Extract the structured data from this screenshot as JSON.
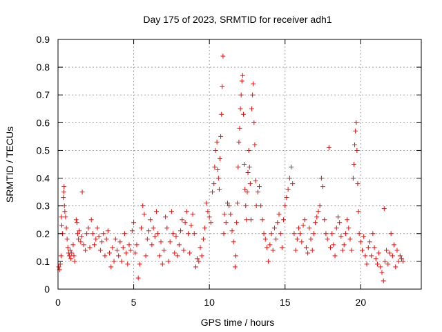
{
  "chart_data": {
    "type": "scatter",
    "title": "Day 175 of 2023, SRMTID for receiver adh1",
    "xlabel": "GPS time / hours",
    "ylabel": "SRMTID / TECUs",
    "xlim": [
      0,
      24
    ],
    "ylim": [
      0,
      0.9
    ],
    "xticks": [
      0,
      5,
      10,
      15,
      20
    ],
    "xtick_labels": [
      "0",
      "5",
      "10",
      "15",
      "20"
    ],
    "yticks": [
      0,
      0.1,
      0.2,
      0.3,
      0.4,
      0.5,
      0.6,
      0.7,
      0.8,
      0.9
    ],
    "ytick_labels": [
      "0",
      "0.1",
      "0.2",
      "0.3",
      "0.4",
      "0.5",
      "0.6",
      "0.7",
      "0.8",
      "0.9"
    ],
    "grid": true,
    "marker": "+",
    "series_color": "#ff0000",
    "series": [
      {
        "name": "SRMTID",
        "points": [
          [
            0.05,
            0.08
          ],
          [
            0.1,
            0.07
          ],
          [
            0.15,
            0.09
          ],
          [
            0.2,
            0.12
          ],
          [
            0.22,
            0.26
          ],
          [
            0.25,
            0.23
          ],
          [
            0.3,
            0.2
          ],
          [
            0.35,
            0.33
          ],
          [
            0.38,
            0.35
          ],
          [
            0.4,
            0.37
          ],
          [
            0.42,
            0.3
          ],
          [
            0.45,
            0.28
          ],
          [
            0.5,
            0.26
          ],
          [
            0.55,
            0.22
          ],
          [
            0.6,
            0.18
          ],
          [
            0.65,
            0.15
          ],
          [
            0.7,
            0.13
          ],
          [
            0.75,
            0.12
          ],
          [
            0.8,
            0.14
          ],
          [
            0.85,
            0.11
          ],
          [
            0.9,
            0.13
          ],
          [
            1.0,
            0.16
          ],
          [
            1.05,
            0.12
          ],
          [
            1.1,
            0.1
          ],
          [
            1.2,
            0.25
          ],
          [
            1.25,
            0.24
          ],
          [
            1.3,
            0.2
          ],
          [
            1.35,
            0.18
          ],
          [
            1.4,
            0.21
          ],
          [
            1.5,
            0.17
          ],
          [
            1.55,
            0.19
          ],
          [
            1.6,
            0.35
          ],
          [
            1.7,
            0.16
          ],
          [
            1.8,
            0.14
          ],
          [
            1.9,
            0.2
          ],
          [
            2.0,
            0.22
          ],
          [
            2.1,
            0.15
          ],
          [
            2.2,
            0.25
          ],
          [
            2.3,
            0.2
          ],
          [
            2.4,
            0.16
          ],
          [
            2.5,
            0.18
          ],
          [
            2.6,
            0.22
          ],
          [
            2.7,
            0.19
          ],
          [
            2.8,
            0.14
          ],
          [
            2.9,
            0.17
          ],
          [
            3.0,
            0.2
          ],
          [
            3.1,
            0.12
          ],
          [
            3.2,
            0.18
          ],
          [
            3.3,
            0.21
          ],
          [
            3.4,
            0.13
          ],
          [
            3.5,
            0.08
          ],
          [
            3.6,
            0.15
          ],
          [
            3.7,
            0.1
          ],
          [
            3.8,
            0.18
          ],
          [
            3.9,
            0.14
          ],
          [
            4.0,
            0.12
          ],
          [
            4.1,
            0.17
          ],
          [
            4.2,
            0.1
          ],
          [
            4.3,
            0.15
          ],
          [
            4.4,
            0.2
          ],
          [
            4.5,
            0.13
          ],
          [
            4.6,
            0.09
          ],
          [
            4.7,
            0.16
          ],
          [
            4.8,
            0.14
          ],
          [
            4.9,
            0.21
          ],
          [
            5.0,
            0.24
          ],
          [
            5.1,
            0.13
          ],
          [
            5.2,
            0.16
          ],
          [
            5.3,
            0.04
          ],
          [
            5.4,
            0.09
          ],
          [
            5.5,
            0.22
          ],
          [
            5.6,
            0.3
          ],
          [
            5.7,
            0.27
          ],
          [
            5.8,
            0.12
          ],
          [
            5.9,
            0.18
          ],
          [
            6.0,
            0.21
          ],
          [
            6.1,
            0.25
          ],
          [
            6.2,
            0.16
          ],
          [
            6.3,
            0.22
          ],
          [
            6.4,
            0.19
          ],
          [
            6.5,
            0.28
          ],
          [
            6.6,
            0.2
          ],
          [
            6.7,
            0.12
          ],
          [
            6.8,
            0.17
          ],
          [
            6.9,
            0.09
          ],
          [
            7.0,
            0.14
          ],
          [
            7.1,
            0.26
          ],
          [
            7.2,
            0.22
          ],
          [
            7.3,
            0.1
          ],
          [
            7.4,
            0.17
          ],
          [
            7.5,
            0.28
          ],
          [
            7.6,
            0.2
          ],
          [
            7.7,
            0.13
          ],
          [
            7.8,
            0.19
          ],
          [
            7.9,
            0.12
          ],
          [
            8.0,
            0.16
          ],
          [
            8.1,
            0.21
          ],
          [
            8.2,
            0.25
          ],
          [
            8.3,
            0.14
          ],
          [
            8.4,
            0.24
          ],
          [
            8.5,
            0.28
          ],
          [
            8.6,
            0.2
          ],
          [
            8.7,
            0.13
          ],
          [
            8.8,
            0.23
          ],
          [
            8.9,
            0.27
          ],
          [
            9.0,
            0.2
          ],
          [
            9.1,
            0.08
          ],
          [
            9.2,
            0.11
          ],
          [
            9.3,
            0.1
          ],
          [
            9.4,
            0.15
          ],
          [
            9.5,
            0.12
          ],
          [
            9.6,
            0.18
          ],
          [
            9.7,
            0.22
          ],
          [
            9.8,
            0.31
          ],
          [
            9.9,
            0.28
          ],
          [
            10.0,
            0.26
          ],
          [
            10.1,
            0.24
          ],
          [
            10.2,
            0.35
          ],
          [
            10.3,
            0.38
          ],
          [
            10.35,
            0.44
          ],
          [
            10.4,
            0.5
          ],
          [
            10.5,
            0.53
          ],
          [
            10.55,
            0.43
          ],
          [
            10.6,
            0.4
          ],
          [
            10.65,
            0.36
          ],
          [
            10.7,
            0.47
          ],
          [
            10.75,
            0.55
          ],
          [
            10.8,
            0.63
          ],
          [
            10.85,
            0.73
          ],
          [
            10.9,
            0.84
          ],
          [
            10.95,
            0.2
          ],
          [
            11.0,
            0.27
          ],
          [
            11.1,
            0.24
          ],
          [
            11.2,
            0.31
          ],
          [
            11.3,
            0.3
          ],
          [
            11.4,
            0.27
          ],
          [
            11.5,
            0.21
          ],
          [
            11.6,
            0.17
          ],
          [
            11.7,
            0.08
          ],
          [
            11.75,
            0.12
          ],
          [
            11.8,
            0.24
          ],
          [
            11.85,
            0.31
          ],
          [
            11.9,
            0.44
          ],
          [
            11.95,
            0.53
          ],
          [
            12.0,
            0.58
          ],
          [
            12.05,
            0.65
          ],
          [
            12.1,
            0.7
          ],
          [
            12.15,
            0.75
          ],
          [
            12.2,
            0.77
          ],
          [
            12.25,
            0.63
          ],
          [
            12.3,
            0.45
          ],
          [
            12.35,
            0.36
          ],
          [
            12.4,
            0.3
          ],
          [
            12.45,
            0.25
          ],
          [
            12.5,
            0.35
          ],
          [
            12.55,
            0.42
          ],
          [
            12.6,
            0.5
          ],
          [
            12.65,
            0.44
          ],
          [
            12.7,
            0.38
          ],
          [
            12.75,
            0.25
          ],
          [
            12.8,
            0.65
          ],
          [
            12.85,
            0.7
          ],
          [
            12.9,
            0.74
          ],
          [
            12.95,
            0.6
          ],
          [
            13.0,
            0.52
          ],
          [
            13.05,
            0.39
          ],
          [
            13.1,
            0.3
          ],
          [
            13.2,
            0.35
          ],
          [
            13.3,
            0.37
          ],
          [
            13.4,
            0.3
          ],
          [
            13.5,
            0.25
          ],
          [
            13.6,
            0.2
          ],
          [
            13.7,
            0.18
          ],
          [
            13.8,
            0.15
          ],
          [
            13.9,
            0.1
          ],
          [
            14.0,
            0.16
          ],
          [
            14.1,
            0.2
          ],
          [
            14.2,
            0.14
          ],
          [
            14.3,
            0.22
          ],
          [
            14.4,
            0.18
          ],
          [
            14.5,
            0.24
          ],
          [
            14.6,
            0.27
          ],
          [
            14.7,
            0.2
          ],
          [
            14.8,
            0.15
          ],
          [
            14.9,
            0.25
          ],
          [
            15.0,
            0.3
          ],
          [
            15.1,
            0.33
          ],
          [
            15.2,
            0.36
          ],
          [
            15.3,
            0.4
          ],
          [
            15.4,
            0.44
          ],
          [
            15.5,
            0.38
          ],
          [
            15.6,
            0.2
          ],
          [
            15.7,
            0.14
          ],
          [
            15.8,
            0.18
          ],
          [
            15.9,
            0.22
          ],
          [
            16.0,
            0.2
          ],
          [
            16.1,
            0.17
          ],
          [
            16.2,
            0.23
          ],
          [
            16.3,
            0.25
          ],
          [
            16.4,
            0.15
          ],
          [
            16.5,
            0.13
          ],
          [
            16.6,
            0.22
          ],
          [
            16.7,
            0.18
          ],
          [
            16.8,
            0.14
          ],
          [
            16.9,
            0.2
          ],
          [
            17.0,
            0.24
          ],
          [
            17.1,
            0.26
          ],
          [
            17.2,
            0.28
          ],
          [
            17.3,
            0.3
          ],
          [
            17.4,
            0.4
          ],
          [
            17.5,
            0.37
          ],
          [
            17.6,
            0.25
          ],
          [
            17.7,
            0.2
          ],
          [
            17.8,
            0.18
          ],
          [
            17.9,
            0.51
          ],
          [
            18.0,
            0.15
          ],
          [
            18.1,
            0.2
          ],
          [
            18.2,
            0.16
          ],
          [
            18.3,
            0.12
          ],
          [
            18.4,
            0.22
          ],
          [
            18.5,
            0.26
          ],
          [
            18.6,
            0.24
          ],
          [
            18.7,
            0.19
          ],
          [
            18.8,
            0.14
          ],
          [
            18.9,
            0.16
          ],
          [
            19.0,
            0.2
          ],
          [
            19.1,
            0.25
          ],
          [
            19.2,
            0.22
          ],
          [
            19.3,
            0.18
          ],
          [
            19.4,
            0.14
          ],
          [
            19.5,
            0.4
          ],
          [
            19.55,
            0.45
          ],
          [
            19.6,
            0.52
          ],
          [
            19.65,
            0.57
          ],
          [
            19.7,
            0.6
          ],
          [
            19.75,
            0.5
          ],
          [
            19.8,
            0.38
          ],
          [
            19.85,
            0.28
          ],
          [
            19.9,
            0.2
          ],
          [
            20.0,
            0.17
          ],
          [
            20.1,
            0.14
          ],
          [
            20.2,
            0.19
          ],
          [
            20.3,
            0.12
          ],
          [
            20.4,
            0.09
          ],
          [
            20.5,
            0.15
          ],
          [
            20.6,
            0.17
          ],
          [
            20.7,
            0.12
          ],
          [
            20.8,
            0.2
          ],
          [
            20.9,
            0.15
          ],
          [
            21.0,
            0.11
          ],
          [
            21.1,
            0.09
          ],
          [
            21.2,
            0.13
          ],
          [
            21.3,
            0.08
          ],
          [
            21.4,
            0.06
          ],
          [
            21.5,
            0.03
          ],
          [
            21.55,
            0.29
          ],
          [
            21.6,
            0.1
          ],
          [
            21.7,
            0.14
          ],
          [
            21.8,
            0.09
          ],
          [
            21.9,
            0.13
          ],
          [
            22.0,
            0.2
          ],
          [
            22.1,
            0.12
          ],
          [
            22.2,
            0.16
          ],
          [
            22.3,
            0.08
          ],
          [
            22.4,
            0.14
          ],
          [
            22.5,
            0.1
          ],
          [
            22.6,
            0.12
          ],
          [
            22.7,
            0.11
          ],
          [
            22.8,
            0.1
          ]
        ]
      }
    ]
  }
}
